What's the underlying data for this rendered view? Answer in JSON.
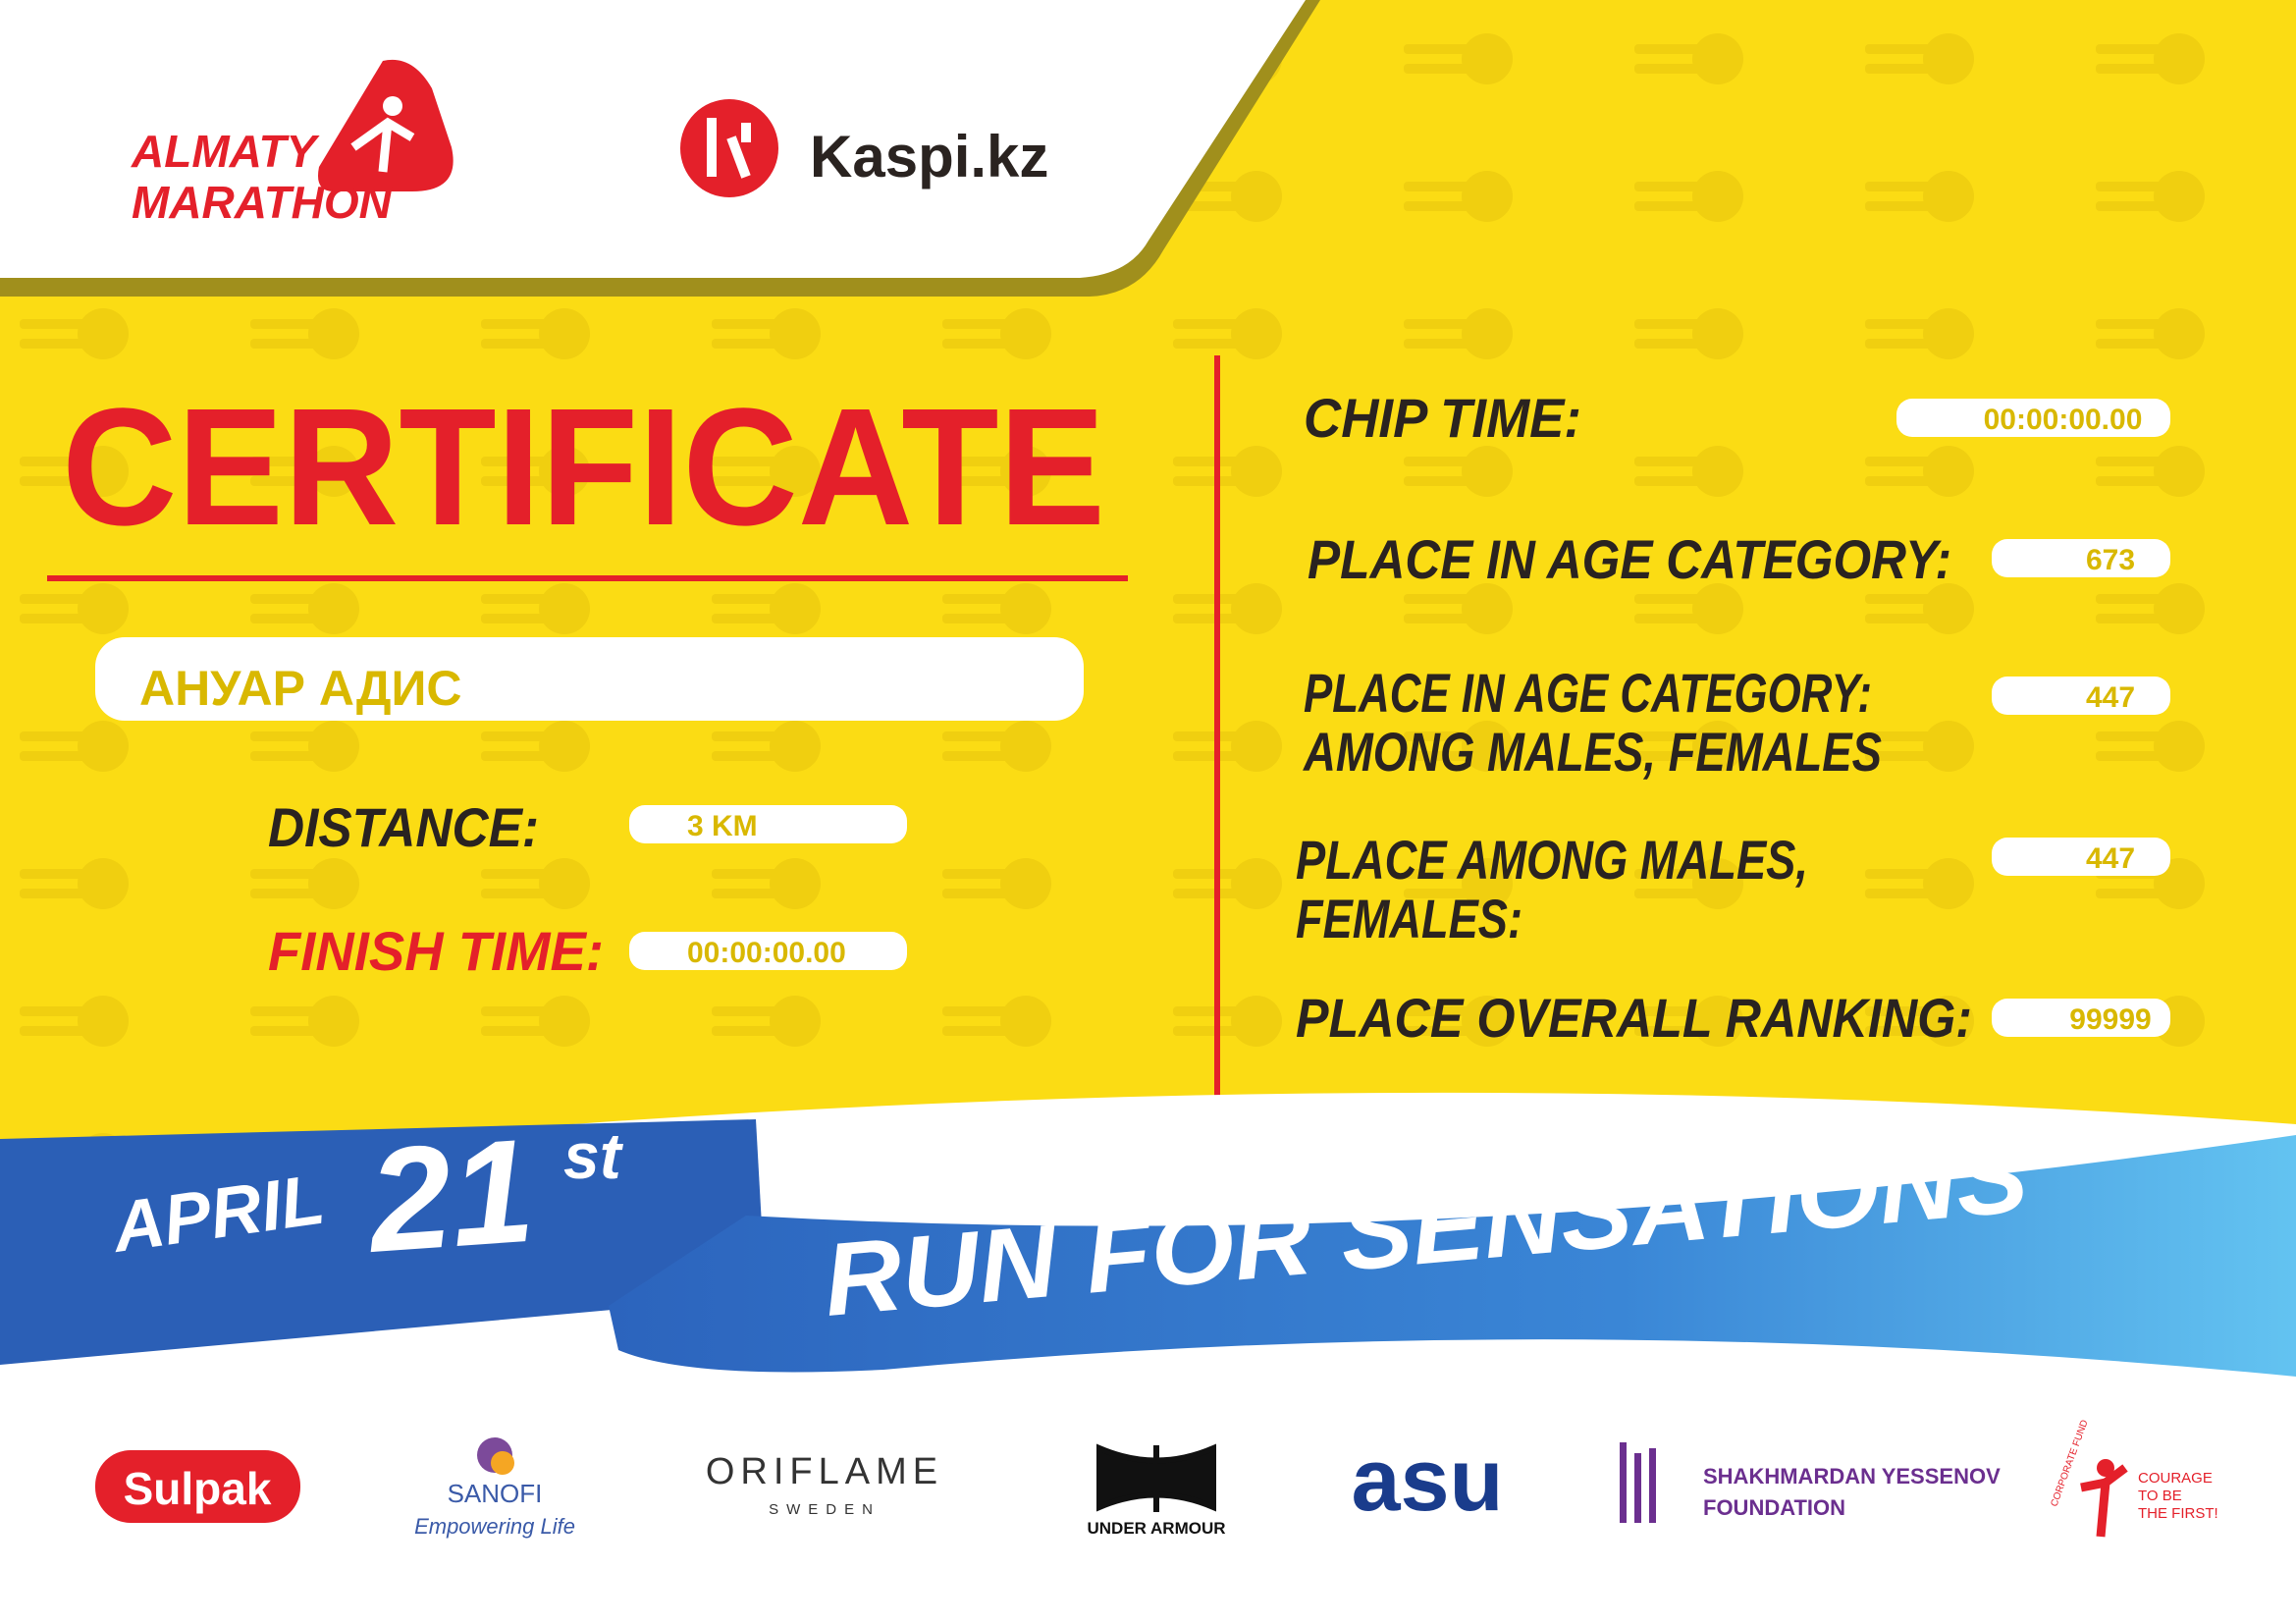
{
  "header": {
    "logo_line1": "ALMATY",
    "logo_line2": "MARATHON",
    "sponsor": "Kaspi.kz"
  },
  "certificate": {
    "title": "CERTIFICATE",
    "name": "АНУАР АДИС",
    "fields": [
      {
        "label": "DISTANCE:",
        "value": "3 KM"
      },
      {
        "label": "FINISH TIME:",
        "value": "00:00:00.00"
      }
    ],
    "results": [
      {
        "label_lines": [
          "CHIP TIME:"
        ],
        "value": "00:00:00.00"
      },
      {
        "label_lines": [
          "PLACE IN AGE CATEGORY:"
        ],
        "value": 673
      },
      {
        "label_lines": [
          "PLACE IN AGE CATEGORY:",
          "AMONG MALES, FEMALES"
        ],
        "value": 447
      },
      {
        "label_lines": [
          "PLACE AMONG MALES,",
          "FEMALES:"
        ],
        "value": 447
      },
      {
        "label_lines": [
          "PLACE OVERALL RANKING:"
        ],
        "value": 99999
      }
    ]
  },
  "banner": {
    "month": "APRIL",
    "day": "21",
    "suffix": "st",
    "slogan": "RUN FOR SENSATIONS"
  },
  "partners": {
    "sulpak": "Sulpak",
    "sanofi": [
      "SANOFI",
      "Empowering Life"
    ],
    "oriflame": [
      "ORIFLAME",
      "SWEDEN"
    ],
    "under_armour": "UNDER ARMOUR",
    "asu": "asu",
    "yessenov": [
      "SHAKHMARDAN YESSENOV",
      "FOUNDATION"
    ],
    "courage": [
      "CORPORATE FUND",
      "COURAGE",
      "TO BE",
      "THE FIRST!"
    ]
  }
}
